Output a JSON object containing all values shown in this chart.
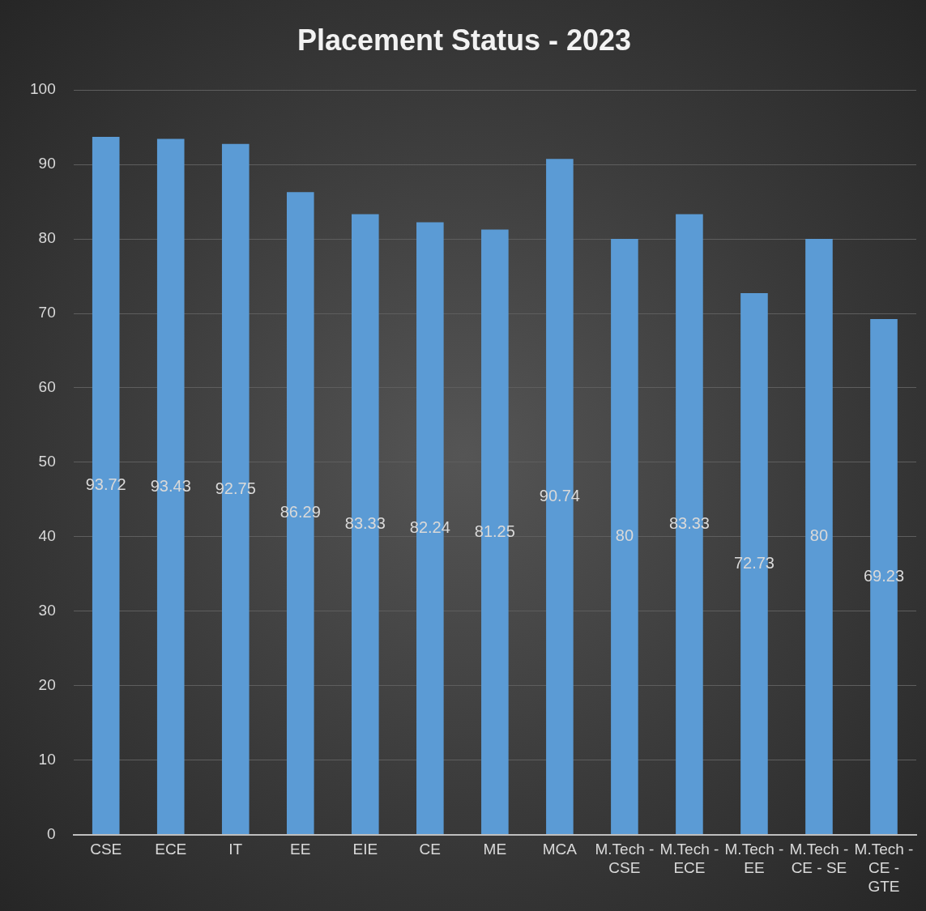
{
  "chart_data": {
    "type": "bar",
    "title": "Placement Status - 2023",
    "categories": [
      "CSE",
      "ECE",
      "IT",
      "EE",
      "EIE",
      "CE",
      "ME",
      "MCA",
      "M.Tech - CSE",
      "M.Tech - ECE",
      "M.Tech - EE",
      "M.Tech - CE - SE",
      "M.Tech - CE - GTE"
    ],
    "values": [
      93.72,
      93.43,
      92.75,
      86.29,
      83.33,
      82.24,
      81.25,
      90.74,
      80,
      83.33,
      72.73,
      80,
      69.23
    ],
    "color": "#5b9bd5",
    "ylim": [
      0,
      100
    ],
    "yticks": [
      0,
      10,
      20,
      30,
      40,
      50,
      60,
      70,
      80,
      90,
      100
    ],
    "grid": "y",
    "data_labels": true,
    "legend": false
  }
}
